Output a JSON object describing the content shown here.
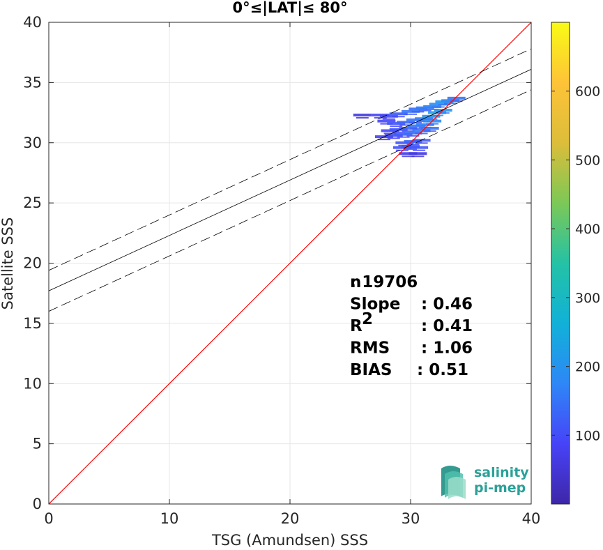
{
  "chart_data": {
    "type": "scatter",
    "title": "0°≤|LAT|≤ 80°",
    "xlabel": "TSG (Amundsen) SSS",
    "ylabel": "Satellite SSS",
    "xlim": [
      0,
      40
    ],
    "ylim": [
      0,
      40
    ],
    "xticks": [
      "0",
      "10",
      "20",
      "30",
      "40"
    ],
    "yticks": [
      "0",
      "5",
      "10",
      "15",
      "20",
      "25",
      "30",
      "35",
      "40"
    ],
    "grid": true,
    "reference_line": {
      "slope": 1,
      "intercept": 0,
      "color": "#ff0000"
    },
    "regression_line": {
      "slope": 0.46,
      "intercept": 17.7,
      "color": "#000000"
    },
    "confidence_band": {
      "offset": 1.7,
      "style": "dashed",
      "color": "#000000"
    },
    "density_points": [
      {
        "x": 26.0,
        "y": 32.3,
        "v": 60
      },
      {
        "x": 27.5,
        "y": 32.3,
        "v": 90
      },
      {
        "x": 28.2,
        "y": 32.2,
        "v": 100
      },
      {
        "x": 29.0,
        "y": 32.4,
        "v": 120
      },
      {
        "x": 30.0,
        "y": 32.6,
        "v": 150
      },
      {
        "x": 30.6,
        "y": 32.8,
        "v": 140
      },
      {
        "x": 31.2,
        "y": 32.9,
        "v": 160
      },
      {
        "x": 31.8,
        "y": 33.0,
        "v": 170
      },
      {
        "x": 32.3,
        "y": 33.2,
        "v": 190
      },
      {
        "x": 32.8,
        "y": 33.4,
        "v": 200
      },
      {
        "x": 33.3,
        "y": 33.5,
        "v": 180
      },
      {
        "x": 33.8,
        "y": 33.7,
        "v": 150
      },
      {
        "x": 28.0,
        "y": 31.8,
        "v": 90
      },
      {
        "x": 28.8,
        "y": 31.6,
        "v": 110
      },
      {
        "x": 29.6,
        "y": 31.7,
        "v": 130
      },
      {
        "x": 30.4,
        "y": 31.9,
        "v": 150
      },
      {
        "x": 31.1,
        "y": 32.0,
        "v": 170
      },
      {
        "x": 31.7,
        "y": 32.2,
        "v": 200
      },
      {
        "x": 32.2,
        "y": 32.5,
        "v": 220
      },
      {
        "x": 32.7,
        "y": 32.7,
        "v": 200
      },
      {
        "x": 28.3,
        "y": 31.0,
        "v": 90
      },
      {
        "x": 29.0,
        "y": 31.1,
        "v": 110
      },
      {
        "x": 29.8,
        "y": 31.2,
        "v": 130
      },
      {
        "x": 30.5,
        "y": 31.4,
        "v": 150
      },
      {
        "x": 31.2,
        "y": 31.5,
        "v": 170
      },
      {
        "x": 31.8,
        "y": 31.8,
        "v": 180
      },
      {
        "x": 27.8,
        "y": 30.5,
        "v": 80
      },
      {
        "x": 28.6,
        "y": 30.6,
        "v": 100
      },
      {
        "x": 29.4,
        "y": 30.7,
        "v": 120
      },
      {
        "x": 30.2,
        "y": 30.8,
        "v": 140
      },
      {
        "x": 30.9,
        "y": 31.0,
        "v": 160
      },
      {
        "x": 31.6,
        "y": 31.2,
        "v": 150
      },
      {
        "x": 29.5,
        "y": 30.0,
        "v": 110
      },
      {
        "x": 30.2,
        "y": 30.1,
        "v": 130
      },
      {
        "x": 30.9,
        "y": 30.2,
        "v": 120
      },
      {
        "x": 29.3,
        "y": 29.6,
        "v": 100
      },
      {
        "x": 30.0,
        "y": 29.7,
        "v": 120
      },
      {
        "x": 30.7,
        "y": 29.6,
        "v": 110
      },
      {
        "x": 29.8,
        "y": 29.1,
        "v": 70
      },
      {
        "x": 30.6,
        "y": 29.1,
        "v": 60
      }
    ],
    "colorbar": {
      "min": 0,
      "max": 700,
      "ticks": [
        "100",
        "200",
        "300",
        "400",
        "500",
        "600"
      ],
      "colormap": [
        "#3e26a8",
        "#4743f8",
        "#2e87f7",
        "#11b1d8",
        "#24c2a5",
        "#7cc856",
        "#dcbd3a",
        "#fec338",
        "#f9fb15"
      ]
    },
    "stats": [
      {
        "label": "n",
        "value": ": 19706"
      },
      {
        "label": "Slope",
        "value": ": 0.46"
      },
      {
        "label": "R",
        "sup": "2",
        "value": ": 0.41"
      },
      {
        "label": "RMS",
        "value": ": 1.06"
      },
      {
        "label": "BIAS",
        "value": ": 0.51"
      }
    ]
  },
  "logo": {
    "line1": "salinity",
    "line2": "pi-mep",
    "color": "#2aa198"
  }
}
